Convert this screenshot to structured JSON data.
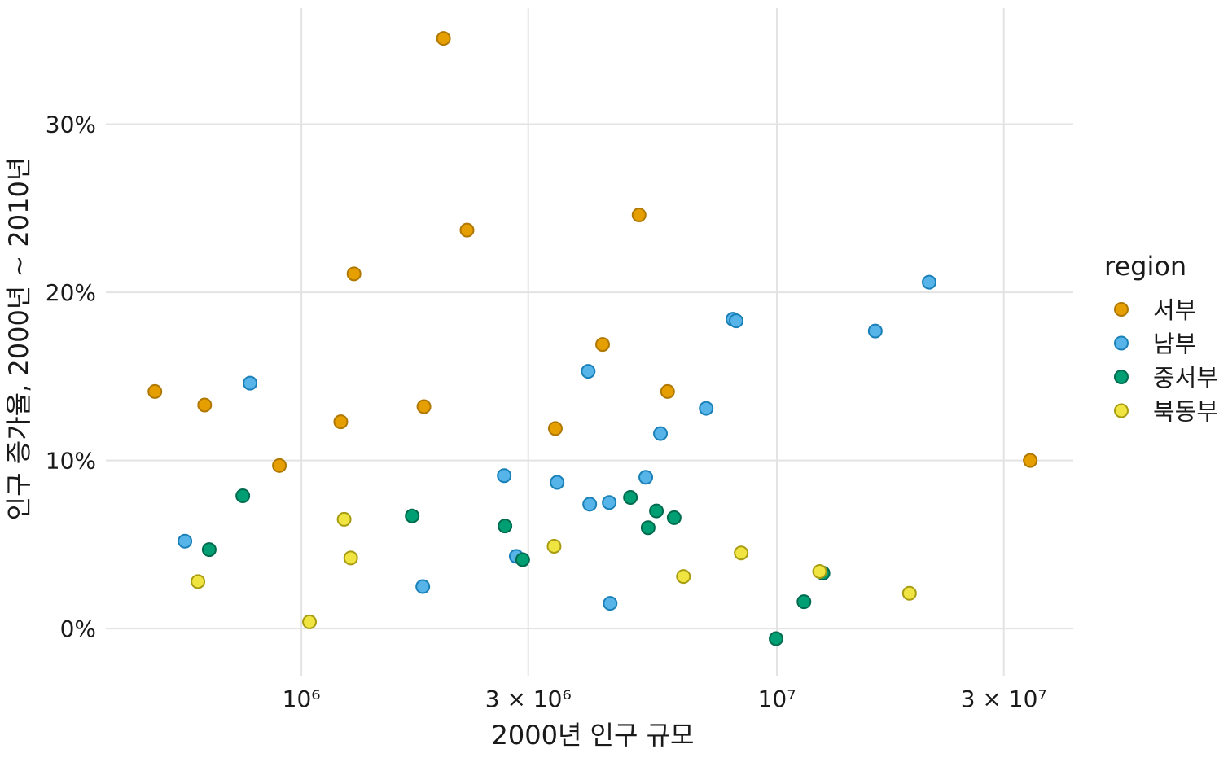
{
  "chart_data": {
    "type": "scatter",
    "title": "",
    "xlabel": "2000년 인구 규모",
    "ylabel": "인구 증가율, 2000년 ~ 2010년",
    "xscale": "log10",
    "xlim": [
      388000,
      42000000
    ],
    "ylim": [
      -2.8,
      36.9
    ],
    "grid": true,
    "x_ticks": [
      {
        "value": 1000000,
        "label": "10⁶"
      },
      {
        "value": 3000000,
        "label": "3 × 10⁶"
      },
      {
        "value": 10000000,
        "label": "10⁷"
      },
      {
        "value": 30000000,
        "label": "3 × 10⁷"
      }
    ],
    "y_ticks": [
      {
        "value": 0,
        "label": "0%"
      },
      {
        "value": 10,
        "label": "10%"
      },
      {
        "value": 20,
        "label": "20%"
      },
      {
        "value": 30,
        "label": "30%"
      }
    ],
    "legend": {
      "title": "region",
      "position": "right"
    },
    "series": [
      {
        "name": "서부",
        "color": "#E69F00",
        "stroke": "#B07800",
        "points": [
          [
            1990000,
            35.1
          ],
          [
            2230000,
            23.7
          ],
          [
            5130000,
            24.6
          ],
          [
            1290000,
            21.1
          ],
          [
            4300000,
            16.9
          ],
          [
            492000,
            14.1
          ],
          [
            626000,
            13.3
          ],
          [
            1810000,
            13.2
          ],
          [
            5890000,
            14.1
          ],
          [
            1210000,
            12.3
          ],
          [
            3420000,
            11.9
          ],
          [
            899000,
            9.7
          ],
          [
            34100000,
            10.0
          ]
        ]
      },
      {
        "name": "남부",
        "color": "#56B4E9",
        "stroke": "#1A80B8",
        "points": [
          [
            20900000,
            20.6
          ],
          [
            8080000,
            18.4
          ],
          [
            8210000,
            18.3
          ],
          [
            16100000,
            17.7
          ],
          [
            4010000,
            15.3
          ],
          [
            780000,
            14.6
          ],
          [
            7100000,
            13.1
          ],
          [
            5690000,
            11.6
          ],
          [
            2670000,
            9.1
          ],
          [
            5300000,
            9.0
          ],
          [
            3450000,
            8.7
          ],
          [
            4040000,
            7.4
          ],
          [
            4440000,
            7.5
          ],
          [
            569000,
            5.2
          ],
          [
            2830000,
            4.3
          ],
          [
            1800000,
            2.5
          ],
          [
            4460000,
            1.5
          ]
        ]
      },
      {
        "name": "중서부",
        "color": "#009E73",
        "stroke": "#006B4E",
        "points": [
          [
            753000,
            7.9
          ],
          [
            4920000,
            7.8
          ],
          [
            5580000,
            7.0
          ],
          [
            6080000,
            6.6
          ],
          [
            1710000,
            6.7
          ],
          [
            2680000,
            6.1
          ],
          [
            5360000,
            6.0
          ],
          [
            640000,
            4.7
          ],
          [
            2920000,
            4.1
          ],
          [
            12500000,
            3.3
          ],
          [
            11400000,
            1.6
          ],
          [
            9960000,
            -0.6
          ]
        ]
      },
      {
        "name": "북동부",
        "color": "#F0E442",
        "stroke": "#A89C10",
        "points": [
          [
            1230000,
            6.5
          ],
          [
            1270000,
            4.2
          ],
          [
            3400000,
            4.9
          ],
          [
            8410000,
            4.5
          ],
          [
            606000,
            2.8
          ],
          [
            6360000,
            3.1
          ],
          [
            12300000,
            3.4
          ],
          [
            19000000,
            2.1
          ],
          [
            1040000,
            0.4
          ]
        ]
      }
    ]
  }
}
